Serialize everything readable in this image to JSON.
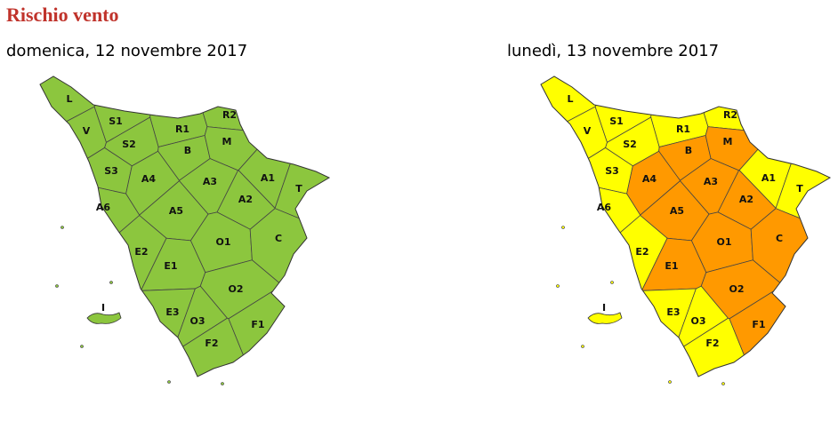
{
  "title": "Rischio vento",
  "maps": [
    {
      "date": "domenica, 12 novembre 2017",
      "zones": [
        {
          "label": "L",
          "color": "#8cc63e"
        },
        {
          "label": "S1",
          "color": "#8cc63e"
        },
        {
          "label": "V",
          "color": "#8cc63e"
        },
        {
          "label": "R1",
          "color": "#8cc63e"
        },
        {
          "label": "R2",
          "color": "#8cc63e"
        },
        {
          "label": "S2",
          "color": "#8cc63e"
        },
        {
          "label": "B",
          "color": "#8cc63e"
        },
        {
          "label": "M",
          "color": "#8cc63e"
        },
        {
          "label": "S3",
          "color": "#8cc63e"
        },
        {
          "label": "A4",
          "color": "#8cc63e"
        },
        {
          "label": "A3",
          "color": "#8cc63e"
        },
        {
          "label": "A1",
          "color": "#8cc63e"
        },
        {
          "label": "T",
          "color": "#8cc63e"
        },
        {
          "label": "A6",
          "color": "#8cc63e"
        },
        {
          "label": "A5",
          "color": "#8cc63e"
        },
        {
          "label": "A2",
          "color": "#8cc63e"
        },
        {
          "label": "O1",
          "color": "#8cc63e"
        },
        {
          "label": "C",
          "color": "#8cc63e"
        },
        {
          "label": "E2",
          "color": "#8cc63e"
        },
        {
          "label": "E1",
          "color": "#8cc63e"
        },
        {
          "label": "O2",
          "color": "#8cc63e"
        },
        {
          "label": "I",
          "color": "#8cc63e"
        },
        {
          "label": "E3",
          "color": "#8cc63e"
        },
        {
          "label": "O3",
          "color": "#8cc63e"
        },
        {
          "label": "F1",
          "color": "#8cc63e"
        },
        {
          "label": "F2",
          "color": "#8cc63e"
        }
      ]
    },
    {
      "date": "lunedì, 13 novembre 2017",
      "zones": [
        {
          "label": "L",
          "color": "#ffff00"
        },
        {
          "label": "S1",
          "color": "#ffff00"
        },
        {
          "label": "V",
          "color": "#ffff00"
        },
        {
          "label": "R1",
          "color": "#ffff00"
        },
        {
          "label": "R2",
          "color": "#ffff00"
        },
        {
          "label": "S2",
          "color": "#ffff00"
        },
        {
          "label": "B",
          "color": "#ff9900"
        },
        {
          "label": "M",
          "color": "#ff9900"
        },
        {
          "label": "S3",
          "color": "#ffff00"
        },
        {
          "label": "A4",
          "color": "#ff9900"
        },
        {
          "label": "A3",
          "color": "#ff9900"
        },
        {
          "label": "A1",
          "color": "#ffff00"
        },
        {
          "label": "T",
          "color": "#ffff00"
        },
        {
          "label": "A6",
          "color": "#ffff00"
        },
        {
          "label": "A5",
          "color": "#ff9900"
        },
        {
          "label": "A2",
          "color": "#ff9900"
        },
        {
          "label": "O1",
          "color": "#ff9900"
        },
        {
          "label": "C",
          "color": "#ff9900"
        },
        {
          "label": "E2",
          "color": "#ffff00"
        },
        {
          "label": "E1",
          "color": "#ff9900"
        },
        {
          "label": "O2",
          "color": "#ff9900"
        },
        {
          "label": "I",
          "color": "#ffff00"
        },
        {
          "label": "E3",
          "color": "#ffff00"
        },
        {
          "label": "O3",
          "color": "#ffff00"
        },
        {
          "label": "F1",
          "color": "#ff9900"
        },
        {
          "label": "F2",
          "color": "#ffff00"
        }
      ]
    }
  ]
}
